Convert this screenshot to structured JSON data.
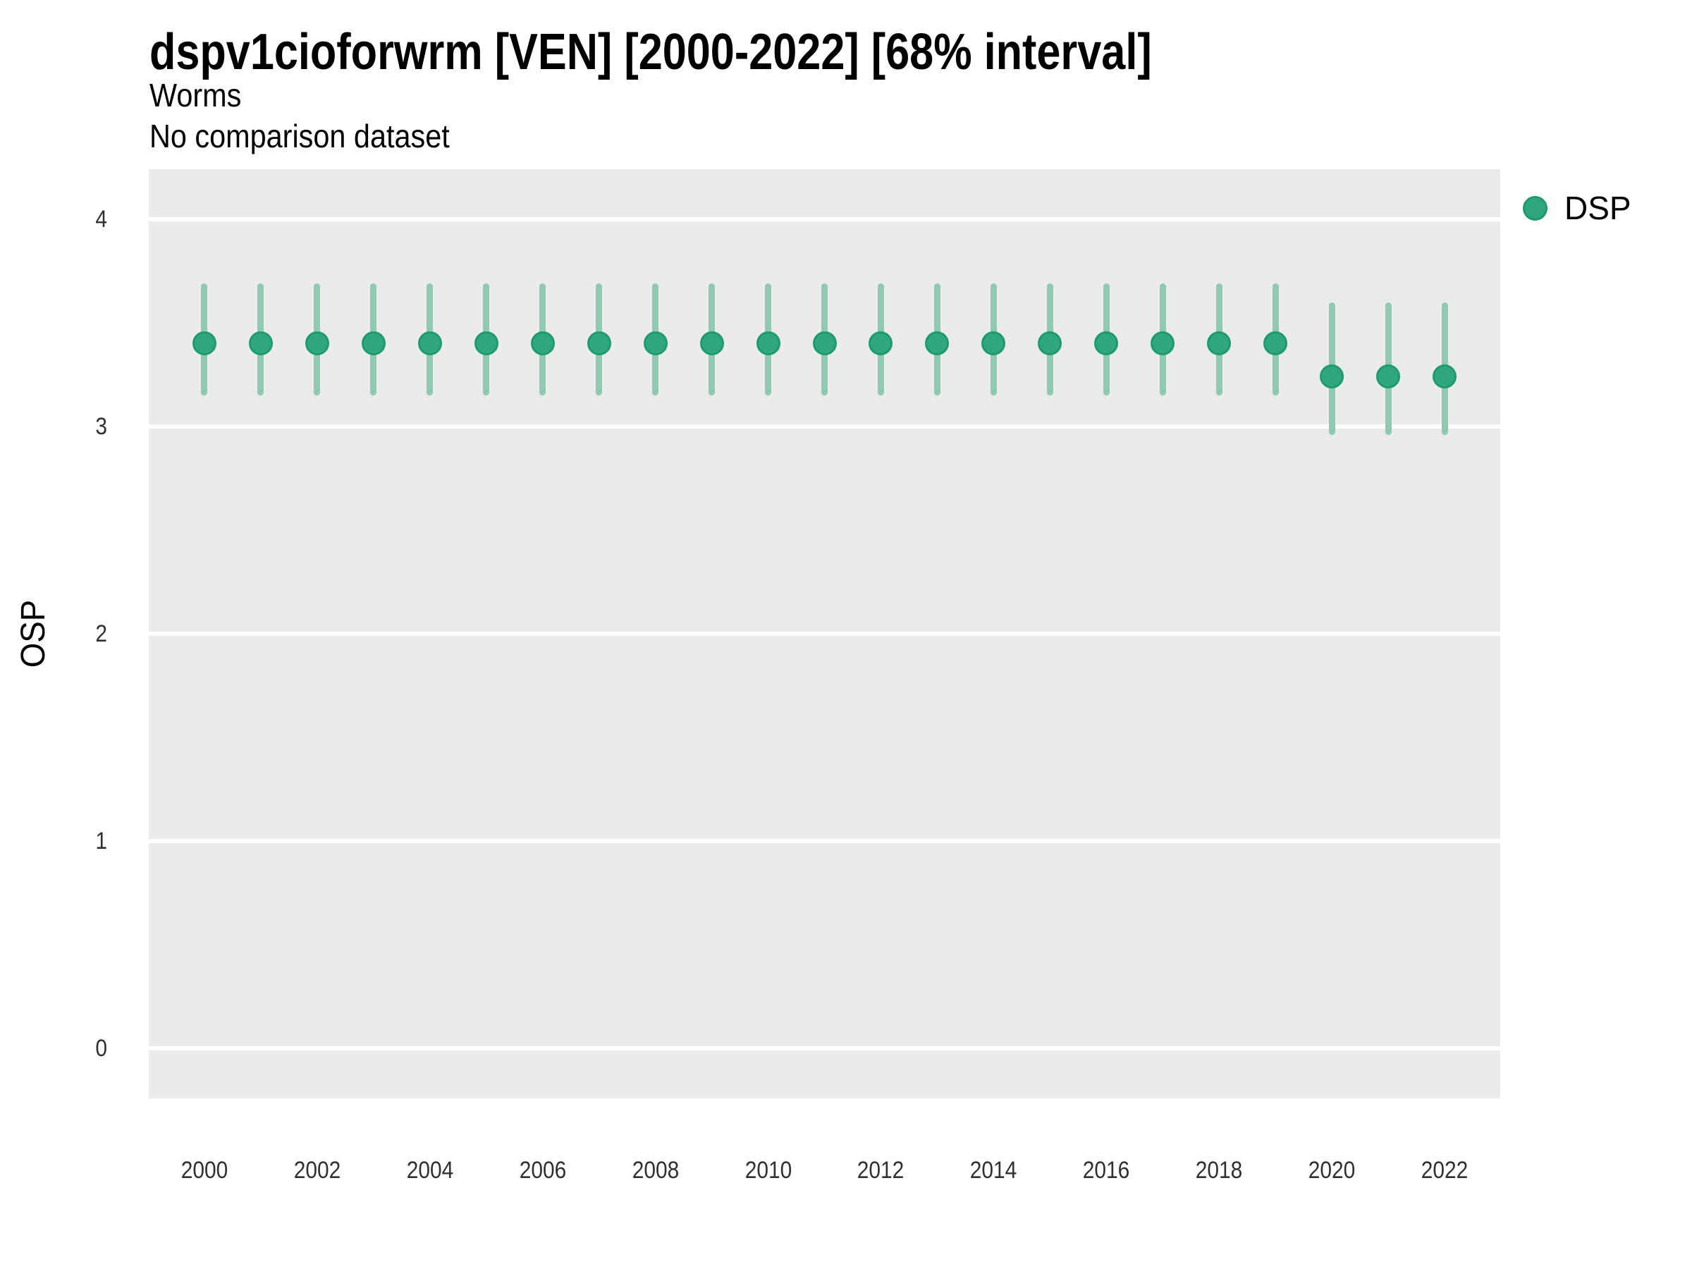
{
  "header": {
    "title": "dspv1cioforwrm [VEN] [2000-2022] [68% interval]",
    "subtitle": "Worms",
    "note": "No comparison dataset"
  },
  "legend": {
    "position": "right",
    "items": [
      {
        "label": "DSP",
        "color": "#2EA77C",
        "ring_color": "#1E9B6C"
      }
    ]
  },
  "colors": {
    "panel_background": "#EBEBEB",
    "gridline": "#FFFFFF",
    "point_fill": "#2EA77C",
    "point_ring": "#1E9B6C",
    "interval_line": "#8CCBB2",
    "axis_text": "#303030",
    "title_text": "#000000"
  },
  "chart_data": {
    "type": "pointrange",
    "title": "dspv1cioforwrm [VEN] [2000-2022] [68% interval]",
    "subtitle": "Worms",
    "note": "No comparison dataset",
    "xlabel": "",
    "ylabel": "OSP",
    "legend_position": "right",
    "grid": "major horizontal white gridlines on gray panel, no minor gridlines, no tick marks",
    "interval_label": "68% interval",
    "x": [
      2000,
      2001,
      2002,
      2003,
      2004,
      2005,
      2006,
      2007,
      2008,
      2009,
      2010,
      2011,
      2012,
      2013,
      2014,
      2015,
      2016,
      2017,
      2018,
      2019,
      2020,
      2021,
      2022
    ],
    "series": [
      {
        "name": "DSP",
        "values": [
          3.4,
          3.4,
          3.4,
          3.4,
          3.4,
          3.4,
          3.4,
          3.4,
          3.4,
          3.4,
          3.4,
          3.4,
          3.4,
          3.4,
          3.4,
          3.4,
          3.4,
          3.4,
          3.4,
          3.4,
          3.24,
          3.24,
          3.24
        ],
        "low": [
          3.15,
          3.15,
          3.15,
          3.15,
          3.15,
          3.15,
          3.15,
          3.15,
          3.15,
          3.15,
          3.15,
          3.15,
          3.15,
          3.15,
          3.15,
          3.15,
          3.15,
          3.15,
          3.15,
          3.15,
          2.96,
          2.96,
          2.96
        ],
        "high": [
          3.69,
          3.69,
          3.69,
          3.69,
          3.69,
          3.69,
          3.69,
          3.69,
          3.69,
          3.69,
          3.69,
          3.69,
          3.69,
          3.69,
          3.69,
          3.69,
          3.69,
          3.69,
          3.69,
          3.69,
          3.6,
          3.6,
          3.6
        ]
      }
    ],
    "xticks": [
      2000,
      2002,
      2004,
      2006,
      2008,
      2010,
      2012,
      2014,
      2016,
      2018,
      2020,
      2022
    ],
    "yticks": [
      0,
      1,
      2,
      3,
      4
    ],
    "xlim": [
      1999.0125,
      2022.9875
    ],
    "ylim": [
      -0.2415,
      4.2415
    ]
  }
}
